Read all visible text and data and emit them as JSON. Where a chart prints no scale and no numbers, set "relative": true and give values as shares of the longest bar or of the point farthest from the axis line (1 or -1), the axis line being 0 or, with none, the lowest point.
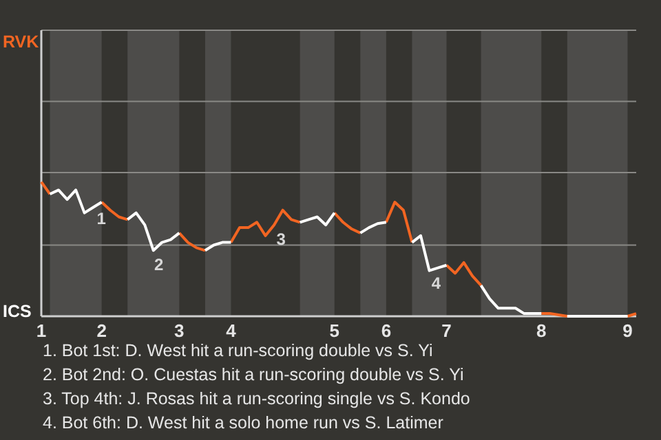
{
  "chart_data": {
    "type": "line",
    "relative": true,
    "categories": [
      "1",
      null,
      null,
      null,
      null,
      null,
      null,
      "2",
      null,
      null,
      null,
      null,
      null,
      null,
      null,
      null,
      "3",
      null,
      null,
      null,
      null,
      null,
      "4",
      null,
      null,
      null,
      null,
      null,
      null,
      null,
      null,
      null,
      null,
      null,
      "5",
      null,
      null,
      null,
      null,
      null,
      "6",
      null,
      null,
      null,
      null,
      null,
      null,
      "7",
      null,
      null,
      null,
      null,
      null,
      null,
      null,
      null,
      null,
      null,
      "8",
      null,
      null,
      null,
      null,
      null,
      null,
      null,
      null,
      null,
      "9",
      null
    ],
    "series": [
      {
        "name": "RVK",
        "color": "#f26522",
        "values": [
          1,
          0.91,
          null,
          null,
          null,
          null,
          null,
          0.85,
          0.79,
          0.74,
          0.72,
          null,
          null,
          null,
          null,
          null,
          0.62,
          0.55,
          0.51,
          0.49,
          null,
          null,
          0.55,
          0.66,
          0.66,
          0.7,
          0.6,
          0.68,
          0.79,
          0.72,
          0.7,
          null,
          null,
          null,
          0.77,
          0.7,
          0.65,
          0.62,
          null,
          null,
          0.7,
          0.85,
          0.79,
          0.55,
          null,
          null,
          null,
          0.38,
          0.32,
          0.4,
          0.3,
          0.23,
          null,
          null,
          null,
          null,
          null,
          null,
          0.02,
          0.02,
          0.01,
          0,
          null,
          null,
          null,
          null,
          null,
          null,
          0,
          0.02
        ]
      },
      {
        "name": "ICS",
        "color": "#ffffff",
        "values": [
          null,
          0.91,
          0.94,
          0.87,
          0.94,
          0.77,
          0.81,
          0.85,
          null,
          null,
          0.72,
          0.77,
          0.68,
          0.49,
          0.55,
          0.57,
          0.62,
          null,
          null,
          0.49,
          0.53,
          0.55,
          0.55,
          null,
          null,
          null,
          null,
          null,
          null,
          null,
          0.7,
          0.72,
          0.74,
          0.68,
          0.77,
          null,
          null,
          0.62,
          0.66,
          0.69,
          0.7,
          null,
          null,
          0.55,
          0.6,
          0.34,
          0.36,
          0.38,
          null,
          null,
          null,
          0.23,
          0.13,
          0.06,
          0.06,
          0.06,
          0.02,
          0.02,
          0.02,
          null,
          null,
          0,
          0,
          0,
          0,
          0,
          0,
          0,
          0,
          null
        ]
      }
    ],
    "ref_lines": [
      {
        "axis": "y",
        "value": 0.53,
        "color": "#8a8986"
      },
      {
        "axis": "y",
        "value": 1.07,
        "color": "#8a8986"
      },
      {
        "axis": "y",
        "value": 1.6,
        "color": "#8a8986"
      },
      {
        "axis": "y",
        "value": 2.13,
        "color": "#8a8986"
      }
    ],
    "annotations": [
      "1",
      "2",
      "3",
      "4",
      "1. Bot 1st: D. West hit a run-scoring double vs S. Yi",
      "2. Bot 2nd: O. Cuestas hit a run-scoring double vs S. Yi",
      "3. Top 4th: J. Rosas hit a run-scoring single vs S. Kondo",
      "4. Bot 6th: D. West hit a solo home run vs S. Latimer"
    ]
  }
}
